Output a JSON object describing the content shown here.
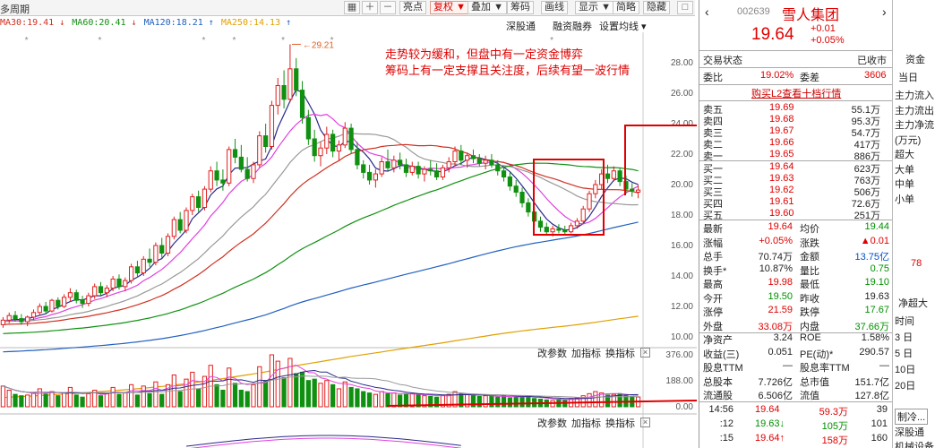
{
  "toolbar": {
    "period": "多周期",
    "buttons": [
      "亮点",
      "复权",
      "叠加",
      "筹码",
      "画线",
      "显示",
      "简略",
      "隐藏"
    ],
    "active": "复权",
    "arrow_down": "▼"
  },
  "ma_legend": [
    {
      "text": "MA30:19.41",
      "arrow": "↓",
      "color": "#d03020"
    },
    {
      "text": "MA60:20.41",
      "arrow": "↓",
      "color": "#109010"
    },
    {
      "text": "MA120:18.21",
      "arrow": "↑",
      "color": "#2060c0"
    },
    {
      "text": "MA250:14.13",
      "arrow": "↑",
      "color": "#e0a000"
    }
  ],
  "chart_links": [
    "深股通",
    "融资融券",
    "设置均线 ▾"
  ],
  "note_lines": [
    "走势较为缓和，但盘中有一定资金博弈",
    "筹码上有一定支撑且关注度，后续有望一波行情"
  ],
  "peak_label": "29.21",
  "price_axis": [
    "28.00",
    "26.00",
    "24.00",
    "22.00",
    "20.00",
    "18.00",
    "16.00",
    "14.00",
    "12.00",
    "10.00"
  ],
  "vol_axis": [
    "376.00",
    "188.00",
    "0.00"
  ],
  "sub_links_1": [
    "改参数",
    "加指标",
    "换指标"
  ],
  "sub_links_2": [
    "改参数",
    "加指标",
    "换指标"
  ],
  "close_x": "×",
  "stock": {
    "code": "002639",
    "name": "雪人集团",
    "price": "19.64",
    "change": "+0.01",
    "change_pct": "+0.05%",
    "status_label": "交易状态",
    "status": "已收市",
    "weibi_label": "委比",
    "weibi": "19.02%",
    "weicha_label": "委差",
    "weicha": "3606",
    "l2_link": "购买L2查看十档行情"
  },
  "asks": [
    {
      "label": "卖五",
      "price": "19.69",
      "vol": "55.1万"
    },
    {
      "label": "卖四",
      "price": "19.68",
      "vol": "95.3万"
    },
    {
      "label": "卖三",
      "price": "19.67",
      "vol": "54.7万"
    },
    {
      "label": "卖二",
      "price": "19.66",
      "vol": "417万"
    },
    {
      "label": "卖一",
      "price": "19.65",
      "vol": "886万"
    }
  ],
  "bids": [
    {
      "label": "买一",
      "price": "19.64",
      "vol": "623万"
    },
    {
      "label": "买二",
      "price": "19.63",
      "vol": "763万"
    },
    {
      "label": "买三",
      "price": "19.62",
      "vol": "506万"
    },
    {
      "label": "买四",
      "price": "19.61",
      "vol": "72.6万"
    },
    {
      "label": "买五",
      "price": "19.60",
      "vol": "251万"
    }
  ],
  "stats": [
    {
      "l1": "最新",
      "v1": "19.64",
      "c1": "red",
      "l2": "均价",
      "v2": "19.44",
      "c2": "green"
    },
    {
      "l1": "涨幅",
      "v1": "+0.05%",
      "c1": "red",
      "l2": "涨跌",
      "v2": "▲0.01",
      "c2": "red"
    },
    {
      "l1": "总手",
      "v1": "70.74万",
      "c1": "dark",
      "l2": "金额",
      "v2": "13.75亿",
      "c2": "blue"
    },
    {
      "l1": "换手*",
      "v1": "10.87%",
      "c1": "dark",
      "l2": "量比",
      "v2": "0.75",
      "c2": "green"
    },
    {
      "l1": "最高",
      "v1": "19.98",
      "c1": "red",
      "l2": "最低",
      "v2": "19.10",
      "c2": "green"
    },
    {
      "l1": "今开",
      "v1": "19.50",
      "c1": "green",
      "l2": "昨收",
      "v2": "19.63",
      "c2": "dark"
    },
    {
      "l1": "涨停",
      "v1": "21.59",
      "c1": "red",
      "l2": "跌停",
      "v2": "17.67",
      "c2": "green"
    },
    {
      "l1": "外盘",
      "v1": "33.08万",
      "c1": "red",
      "l2": "内盘",
      "v2": "37.66万",
      "c2": "green"
    },
    {
      "l1": "净资产",
      "v1": "3.24",
      "c1": "dark",
      "l2": "ROE",
      "v2": "1.58%",
      "c2": "dark"
    },
    {
      "l1": "收益(三)",
      "v1": "0.051",
      "c1": "dark",
      "l2": "PE(动)*",
      "v2": "290.57",
      "c2": "dark"
    },
    {
      "l1": "股息TTM",
      "v1": "—",
      "c1": "dark",
      "l2": "股息率TTM",
      "v2": "—",
      "c2": "dark"
    },
    {
      "l1": "总股本",
      "v1": "7.726亿",
      "c1": "dark",
      "l2": "总市值",
      "v2": "151.7亿",
      "c2": "dark"
    },
    {
      "l1": "流通股",
      "v1": "6.506亿",
      "c1": "dark",
      "l2": "流值",
      "v2": "127.8亿",
      "c2": "dark"
    }
  ],
  "ticks": [
    {
      "time": "14:56",
      "price": "19.64",
      "vol": "59.3万",
      "n": "39",
      "pc": "red",
      "vc": "red"
    },
    {
      "time": ":12",
      "price": "19.63↓",
      "vol": "105万",
      "n": "101",
      "pc": "green",
      "vc": "green"
    },
    {
      "time": ":15",
      "price": "19.64↑",
      "vol": "158万",
      "n": "160",
      "pc": "red",
      "vc": "red"
    }
  ],
  "far_panel": {
    "top": "资金",
    "today": "当日",
    "rows": [
      "主力流入",
      "主力流出",
      "主力净流",
      "(万元)",
      "超大",
      "大单",
      "中单",
      "小单"
    ],
    "value": "78",
    "net": "净超大",
    "time_rows": [
      "时间",
      "3 日",
      "5 日",
      "10日",
      "20日"
    ],
    "bottom": [
      "制冷...",
      "深股通",
      "机械设备"
    ]
  },
  "chart_data": {
    "type": "candlestick",
    "ylim": [
      10,
      30
    ],
    "candles": [
      [
        10.8,
        11.3,
        10.6,
        11.1
      ],
      [
        11.1,
        11.6,
        10.9,
        11.4
      ],
      [
        11.4,
        11.7,
        11.0,
        11.2
      ],
      [
        11.2,
        11.5,
        10.8,
        11.0
      ],
      [
        11.0,
        11.4,
        10.7,
        11.3
      ],
      [
        11.3,
        11.8,
        11.1,
        11.6
      ],
      [
        11.6,
        12.2,
        11.4,
        12.0
      ],
      [
        12.0,
        12.3,
        11.5,
        11.7
      ],
      [
        11.7,
        12.5,
        11.6,
        12.4
      ],
      [
        12.4,
        12.6,
        11.8,
        12.0
      ],
      [
        12.0,
        12.8,
        11.9,
        12.6
      ],
      [
        12.6,
        13.2,
        12.3,
        12.9
      ],
      [
        12.9,
        13.1,
        12.2,
        12.4
      ],
      [
        12.4,
        12.7,
        11.9,
        12.2
      ],
      [
        12.2,
        12.9,
        12.0,
        12.7
      ],
      [
        12.7,
        13.5,
        12.5,
        13.3
      ],
      [
        13.3,
        13.6,
        12.7,
        12.9
      ],
      [
        12.9,
        13.4,
        12.6,
        13.2
      ],
      [
        13.2,
        14.0,
        13.0,
        13.8
      ],
      [
        13.8,
        14.1,
        13.1,
        13.3
      ],
      [
        13.3,
        13.9,
        13.0,
        13.7
      ],
      [
        13.7,
        14.8,
        13.5,
        14.6
      ],
      [
        14.6,
        15.0,
        13.9,
        14.2
      ],
      [
        14.2,
        15.3,
        14.0,
        15.1
      ],
      [
        15.1,
        15.8,
        14.6,
        14.9
      ],
      [
        14.9,
        16.2,
        14.7,
        16.0
      ],
      [
        16.0,
        16.5,
        15.2,
        15.5
      ],
      [
        15.5,
        16.8,
        15.3,
        16.6
      ],
      [
        16.6,
        17.9,
        16.4,
        17.7
      ],
      [
        17.7,
        18.2,
        16.8,
        17.0
      ],
      [
        17.0,
        18.5,
        16.8,
        18.3
      ],
      [
        18.3,
        19.4,
        18.0,
        19.2
      ],
      [
        19.2,
        19.6,
        18.2,
        18.5
      ],
      [
        18.5,
        19.9,
        18.3,
        19.7
      ],
      [
        19.7,
        21.2,
        19.5,
        20.9
      ],
      [
        20.9,
        21.5,
        19.9,
        20.3
      ],
      [
        20.3,
        21.0,
        19.6,
        20.1
      ],
      [
        20.1,
        22.5,
        19.9,
        22.3
      ],
      [
        22.3,
        23.0,
        21.4,
        21.8
      ],
      [
        21.8,
        22.6,
        20.8,
        21.0
      ],
      [
        21.0,
        21.8,
        20.2,
        20.4
      ],
      [
        20.4,
        21.5,
        20.1,
        21.3
      ],
      [
        21.3,
        23.5,
        21.1,
        23.2
      ],
      [
        23.2,
        24.0,
        22.1,
        22.5
      ],
      [
        22.5,
        25.5,
        22.3,
        25.2
      ],
      [
        25.2,
        27.0,
        24.6,
        26.5
      ],
      [
        26.5,
        27.5,
        25.0,
        25.6
      ],
      [
        25.6,
        29.21,
        25.4,
        27.6
      ],
      [
        27.6,
        28.3,
        25.8,
        26.2
      ],
      [
        26.2,
        26.8,
        24.0,
        24.4
      ],
      [
        24.4,
        24.9,
        22.6,
        23.0
      ],
      [
        23.0,
        23.6,
        21.5,
        21.9
      ],
      [
        21.9,
        22.8,
        21.2,
        22.4
      ],
      [
        22.4,
        23.8,
        22.0,
        23.3
      ],
      [
        23.3,
        23.6,
        21.8,
        22.2
      ],
      [
        22.2,
        22.9,
        21.6,
        22.6
      ],
      [
        22.6,
        24.1,
        22.4,
        23.7
      ],
      [
        23.7,
        24.0,
        22.0,
        22.3
      ],
      [
        22.3,
        22.8,
        21.0,
        21.3
      ],
      [
        21.3,
        21.6,
        20.4,
        20.8
      ],
      [
        20.8,
        21.3,
        20.0,
        20.3
      ],
      [
        20.3,
        21.0,
        19.8,
        20.7
      ],
      [
        20.7,
        21.8,
        20.5,
        21.5
      ],
      [
        21.5,
        22.3,
        20.9,
        21.1
      ],
      [
        21.1,
        21.9,
        20.8,
        21.6
      ],
      [
        21.6,
        22.1,
        21.0,
        21.3
      ],
      [
        21.3,
        21.7,
        20.5,
        20.8
      ],
      [
        20.8,
        21.5,
        20.6,
        21.2
      ],
      [
        21.2,
        21.5,
        20.4,
        20.7
      ],
      [
        20.7,
        21.2,
        20.2,
        21.0
      ],
      [
        21.0,
        21.6,
        20.6,
        20.9
      ],
      [
        20.9,
        21.4,
        20.3,
        20.5
      ],
      [
        20.5,
        21.3,
        20.3,
        21.1
      ],
      [
        21.1,
        21.8,
        20.8,
        21.5
      ],
      [
        21.5,
        22.5,
        21.2,
        22.2
      ],
      [
        22.2,
        22.6,
        21.3,
        21.6
      ],
      [
        21.6,
        22.1,
        21.1,
        21.9
      ],
      [
        21.9,
        22.3,
        21.4,
        21.7
      ],
      [
        21.7,
        22.0,
        21.2,
        21.4
      ],
      [
        21.4,
        21.9,
        21.0,
        21.6
      ],
      [
        21.6,
        22.0,
        21.1,
        21.3
      ],
      [
        21.3,
        21.6,
        20.6,
        20.9
      ],
      [
        20.9,
        21.2,
        20.2,
        20.5
      ],
      [
        20.5,
        20.8,
        19.6,
        19.9
      ],
      [
        19.9,
        20.3,
        19.2,
        19.5
      ],
      [
        19.5,
        19.8,
        18.5,
        18.8
      ],
      [
        18.8,
        19.1,
        17.9,
        18.2
      ],
      [
        18.2,
        18.5,
        17.3,
        17.6
      ],
      [
        17.6,
        17.9,
        16.9,
        17.2
      ],
      [
        17.2,
        17.5,
        16.7,
        16.9
      ],
      [
        16.9,
        17.3,
        16.6,
        17.1
      ],
      [
        17.1,
        17.4,
        16.8,
        17.0
      ],
      [
        17.0,
        17.3,
        16.7,
        16.9
      ],
      [
        16.9,
        17.5,
        16.8,
        17.3
      ],
      [
        17.3,
        17.8,
        17.1,
        17.6
      ],
      [
        17.6,
        18.6,
        17.4,
        18.4
      ],
      [
        18.4,
        19.6,
        18.2,
        19.4
      ],
      [
        19.4,
        20.3,
        19.1,
        20.0
      ],
      [
        20.0,
        21.0,
        19.7,
        20.7
      ],
      [
        20.7,
        21.3,
        20.1,
        20.4
      ],
      [
        20.4,
        21.2,
        20.2,
        20.9
      ],
      [
        20.9,
        21.1,
        19.9,
        20.2
      ],
      [
        20.2,
        20.6,
        19.4,
        19.7
      ],
      [
        19.7,
        20.1,
        19.2,
        19.6
      ],
      [
        19.5,
        19.98,
        19.1,
        19.64
      ]
    ],
    "volumes": [
      150,
      120,
      90,
      80,
      85,
      100,
      130,
      90,
      110,
      80,
      100,
      140,
      85,
      70,
      95,
      120,
      80,
      95,
      140,
      90,
      100,
      160,
      85,
      150,
      95,
      180,
      90,
      160,
      230,
      110,
      200,
      250,
      130,
      220,
      300,
      160,
      120,
      280,
      170,
      120,
      110,
      160,
      290,
      190,
      376,
      330,
      210,
      350,
      240,
      250,
      190,
      200,
      170,
      190,
      160,
      130,
      180,
      140,
      130,
      110,
      100,
      90,
      110,
      95,
      100,
      85,
      90,
      95,
      85,
      80,
      75,
      70,
      85,
      90,
      110,
      95,
      90,
      80,
      75,
      80,
      75,
      70,
      80,
      65,
      70,
      75,
      80,
      60,
      55,
      50,
      45,
      55,
      50,
      60,
      65,
      80,
      95,
      110,
      100,
      85,
      90,
      95,
      80,
      75,
      71
    ]
  }
}
